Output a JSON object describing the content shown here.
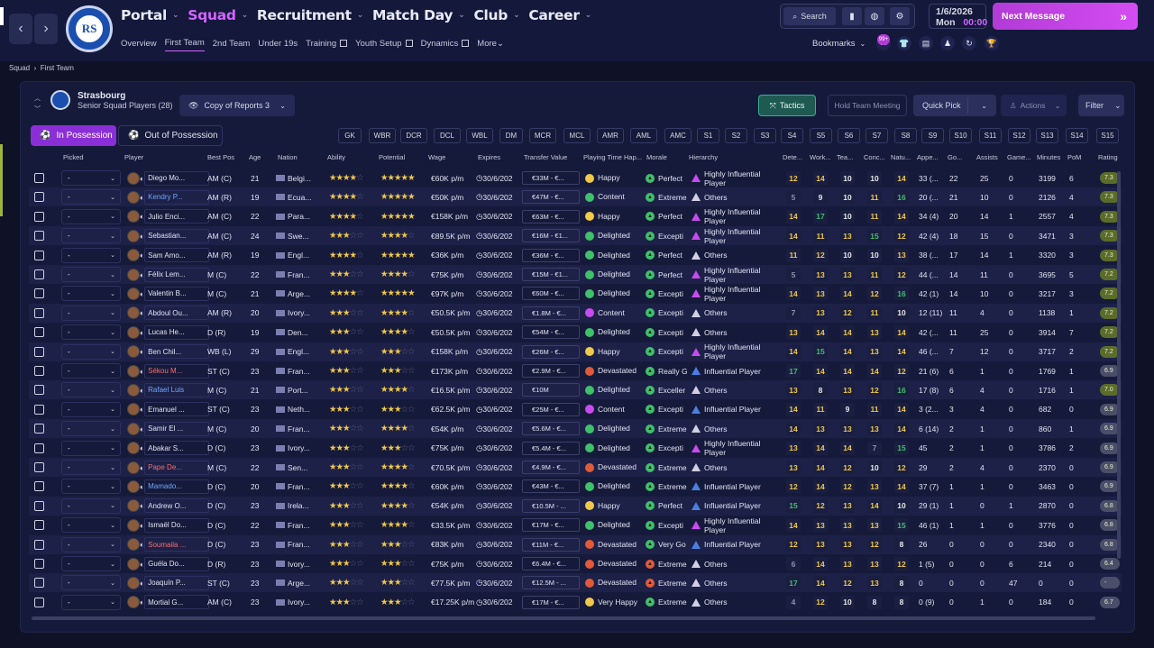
{
  "nav": {
    "main": [
      {
        "label": "Portal",
        "active": false
      },
      {
        "label": "Squad",
        "active": true
      },
      {
        "label": "Recruitment",
        "active": false
      },
      {
        "label": "Match Day",
        "active": false
      },
      {
        "label": "Club",
        "active": false
      },
      {
        "label": "Career",
        "active": false
      }
    ],
    "sub": [
      {
        "label": "Overview",
        "active": false,
        "ext": false
      },
      {
        "label": "First Team",
        "active": true,
        "ext": false
      },
      {
        "label": "2nd Team",
        "active": false,
        "ext": false
      },
      {
        "label": "Under 19s",
        "active": false,
        "ext": false
      },
      {
        "label": "Training",
        "active": false,
        "ext": true
      },
      {
        "label": "Youth Setup",
        "active": false,
        "ext": true
      },
      {
        "label": "Dynamics",
        "active": false,
        "ext": true
      },
      {
        "label": "More",
        "active": false,
        "ext": false
      }
    ],
    "search_label": "Search",
    "date": "1/6/2026",
    "day": "Mon",
    "time": "00:00",
    "next_message": "Next Message",
    "bookmarks": "Bookmarks",
    "badge": "99+"
  },
  "breadcrumb": {
    "root": "Squad",
    "current": "First Team"
  },
  "team": {
    "name": "Strasbourg",
    "subtitle": "Senior Squad Players (28)"
  },
  "toolbar": {
    "view": "Copy of Reports 3",
    "tactics": "Tactics",
    "hold_meeting": "Hold Team Meeting",
    "quick_pick": "Quick Pick",
    "actions": "Actions",
    "filter": "Filter",
    "in_possession": "In Possession",
    "out_possession": "Out of Possession"
  },
  "positions": [
    "GK",
    "WBR",
    "DCR",
    "DCL",
    "WBL",
    "DM",
    "MCR",
    "MCL",
    "AMR",
    "AML",
    "AMC",
    "S1",
    "S2",
    "S3",
    "S4",
    "S5",
    "S6",
    "S7",
    "S8",
    "S9",
    "S10",
    "S11",
    "S12",
    "S13",
    "S14",
    "S15"
  ],
  "headers": [
    "Picked",
    "Player",
    "Best Pos",
    "Age",
    "Nation",
    "Ability",
    "Potential",
    "Wage",
    "Expires",
    "Transfer Value",
    "Playing Time Hap...",
    "Morale",
    "Hierarchy",
    "Dete...",
    "Work...",
    "Tea...",
    "Conc...",
    "Natu...",
    "Appe...",
    "Go...",
    "Assists",
    "Game...",
    "Minutes",
    "PoM",
    "Rating"
  ],
  "colors": {
    "accent": "#d264ff",
    "good": "#3fc06a",
    "mid": "#f0c84a",
    "low": "#e05a3a"
  },
  "rows": [
    {
      "picked": "-",
      "name": "Diego Mo...",
      "pos": "AM (C)",
      "age": "21",
      "nation": "Belgi...",
      "abil": 4,
      "pot": 5,
      "wage": "€60K p/m",
      "exp": "30/6/202",
      "tv": "€33M - €...",
      "hap": "Happy",
      "hapc": "#f0c84a",
      "mor": "Perfect",
      "morc": "#3fc06a",
      "hier": "Highly Influential Player",
      "hierc": "#c74bf0",
      "det": "12",
      "work": "14",
      "tea": "10",
      "conc": "10",
      "natu": "14",
      "app": "33 (...",
      "go": "22",
      "ast": "25",
      "gam": "0",
      "min": "3199",
      "pom": "6",
      "rat": "7.3"
    },
    {
      "picked": "-",
      "name": "Kendry P...",
      "pos": "AM (R)",
      "age": "19",
      "nation": "Ecua...",
      "abil": 4,
      "pot": 5,
      "wage": "€50K p/m",
      "exp": "30/6/202",
      "tv": "€47M - €...",
      "hap": "Content",
      "hapc": "#3fc06a",
      "mor": "Extreme",
      "morc": "#3fc06a",
      "hier": "Others",
      "hierc": "#cfd1e3",
      "det": "5",
      "work": "9",
      "tea": "10",
      "conc": "11",
      "natu": "16",
      "app": "20 (...",
      "go": "21",
      "ast": "10",
      "gam": "0",
      "min": "2126",
      "pom": "4",
      "rat": "7.3"
    },
    {
      "picked": "-",
      "name": "Julio Enci...",
      "pos": "AM (C)",
      "age": "22",
      "nation": "Para...",
      "abil": 4,
      "pot": 5,
      "wage": "€158K p/m",
      "exp": "30/6/202",
      "tv": "€63M - €...",
      "hap": "Happy",
      "hapc": "#f0c84a",
      "mor": "Perfect",
      "morc": "#3fc06a",
      "hier": "Highly Influential Player",
      "hierc": "#c74bf0",
      "det": "14",
      "work": "17",
      "tea": "10",
      "conc": "11",
      "natu": "14",
      "app": "34 (4)",
      "go": "20",
      "ast": "14",
      "gam": "1",
      "min": "2557",
      "pom": "4",
      "rat": "7.3"
    },
    {
      "picked": "-",
      "name": "Sebastian...",
      "pos": "AM (C)",
      "age": "24",
      "nation": "Swe...",
      "abil": 3,
      "pot": 4,
      "wage": "€89.5K p/m",
      "exp": "30/6/202",
      "tv": "€16M - €1...",
      "hap": "Delighted",
      "hapc": "#3fc06a",
      "mor": "Excepti",
      "morc": "#3fc06a",
      "hier": "Highly Influential Player",
      "hierc": "#c74bf0",
      "det": "14",
      "work": "11",
      "tea": "13",
      "conc": "15",
      "natu": "12",
      "app": "42 (4)",
      "go": "18",
      "ast": "15",
      "gam": "0",
      "min": "3471",
      "pom": "3",
      "rat": "7.3"
    },
    {
      "picked": "-",
      "name": "Sam Amo...",
      "pos": "AM (R)",
      "age": "19",
      "nation": "Engl...",
      "abil": 4,
      "pot": 5,
      "wage": "€36K p/m",
      "exp": "30/6/202",
      "tv": "€36M - €...",
      "hap": "Delighted",
      "hapc": "#3fc06a",
      "mor": "Perfect",
      "morc": "#3fc06a",
      "hier": "Others",
      "hierc": "#cfd1e3",
      "det": "11",
      "work": "12",
      "tea": "10",
      "conc": "10",
      "natu": "13",
      "app": "38 (...",
      "go": "17",
      "ast": "14",
      "gam": "1",
      "min": "3320",
      "pom": "3",
      "rat": "7.3"
    },
    {
      "picked": "-",
      "name": "Félix Lem...",
      "pos": "M (C)",
      "age": "22",
      "nation": "Fran...",
      "abil": 3,
      "pot": 4,
      "wage": "€75K p/m",
      "exp": "30/6/202",
      "tv": "€15M - €1...",
      "hap": "Delighted",
      "hapc": "#3fc06a",
      "mor": "Perfect",
      "morc": "#3fc06a",
      "hier": "Highly Influential Player",
      "hierc": "#c74bf0",
      "det": "5",
      "work": "13",
      "tea": "13",
      "conc": "11",
      "natu": "12",
      "app": "44 (...",
      "go": "14",
      "ast": "11",
      "gam": "0",
      "min": "3695",
      "pom": "5",
      "rat": "7.2"
    },
    {
      "picked": "-",
      "name": "Valentin B...",
      "pos": "M (C)",
      "age": "21",
      "nation": "Arge...",
      "abil": 4,
      "pot": 5,
      "wage": "€97K p/m",
      "exp": "30/6/202",
      "tv": "€60M - €...",
      "hap": "Delighted",
      "hapc": "#3fc06a",
      "mor": "Excepti",
      "morc": "#3fc06a",
      "hier": "Highly Influential Player",
      "hierc": "#c74bf0",
      "det": "14",
      "work": "13",
      "tea": "14",
      "conc": "12",
      "natu": "16",
      "app": "42 (1)",
      "go": "14",
      "ast": "10",
      "gam": "0",
      "min": "3217",
      "pom": "3",
      "rat": "7.2"
    },
    {
      "picked": "-",
      "name": "Abdoul Ou...",
      "pos": "AM (R)",
      "age": "20",
      "nation": "Ivory...",
      "abil": 3,
      "pot": 4,
      "wage": "€50.5K p/m",
      "exp": "30/6/202",
      "tv": "€1.8M - €...",
      "hap": "Content",
      "hapc": "#c74bf0",
      "mor": "Excepti",
      "morc": "#3fc06a",
      "hier": "Others",
      "hierc": "#cfd1e3",
      "det": "7",
      "work": "13",
      "tea": "12",
      "conc": "11",
      "natu": "10",
      "app": "12 (11)",
      "go": "11",
      "ast": "4",
      "gam": "0",
      "min": "1138",
      "pom": "1",
      "rat": "7.2"
    },
    {
      "picked": "-",
      "name": "Lucas He...",
      "pos": "D (R)",
      "age": "19",
      "nation": "Den...",
      "abil": 3,
      "pot": 4,
      "wage": "€50.5K p/m",
      "exp": "30/6/202",
      "tv": "€54M - €...",
      "hap": "Delighted",
      "hapc": "#3fc06a",
      "mor": "Excepti",
      "morc": "#3fc06a",
      "hier": "Others",
      "hierc": "#cfd1e3",
      "det": "13",
      "work": "14",
      "tea": "14",
      "conc": "13",
      "natu": "14",
      "app": "42 (...",
      "go": "11",
      "ast": "25",
      "gam": "0",
      "min": "3914",
      "pom": "7",
      "rat": "7.2"
    },
    {
      "picked": "-",
      "name": "Ben Chil...",
      "pos": "WB (L)",
      "age": "29",
      "nation": "Engl...",
      "abil": 3,
      "pot": 3,
      "wage": "€158K p/m",
      "exp": "30/6/202",
      "tv": "€26M - €...",
      "hap": "Happy",
      "hapc": "#f0c84a",
      "mor": "Excepti",
      "morc": "#3fc06a",
      "hier": "Highly Influential Player",
      "hierc": "#c74bf0",
      "det": "14",
      "work": "15",
      "tea": "14",
      "conc": "13",
      "natu": "14",
      "app": "46 (...",
      "go": "7",
      "ast": "12",
      "gam": "0",
      "min": "3717",
      "pom": "2",
      "rat": "7.2"
    },
    {
      "picked": "-",
      "name": "Sékou M...",
      "pos": "ST (C)",
      "age": "23",
      "nation": "Fran...",
      "abil": 3,
      "pot": 3,
      "wage": "€173K p/m",
      "exp": "30/6/202",
      "tv": "€2.9M - €...",
      "hap": "Devastated",
      "hapc": "#e05a3a",
      "mor": "Really G",
      "morc": "#3fc06a",
      "hier": "Influential Player",
      "hierc": "#4a7fe0",
      "det": "17",
      "work": "14",
      "tea": "14",
      "conc": "14",
      "natu": "12",
      "app": "21 (6)",
      "go": "6",
      "ast": "1",
      "gam": "0",
      "min": "1769",
      "pom": "1",
      "rat": "6.9"
    },
    {
      "picked": "-",
      "name": "Rafael Luis",
      "pos": "M (C)",
      "age": "21",
      "nation": "Port...",
      "abil": 3,
      "pot": 4,
      "wage": "€16.5K p/m",
      "exp": "30/6/202",
      "tv": "€10M",
      "hap": "Delighted",
      "hapc": "#3fc06a",
      "mor": "Exceller",
      "morc": "#3fc06a",
      "hier": "Others",
      "hierc": "#cfd1e3",
      "det": "13",
      "work": "8",
      "tea": "13",
      "conc": "12",
      "natu": "16",
      "app": "17 (8)",
      "go": "6",
      "ast": "4",
      "gam": "0",
      "min": "1716",
      "pom": "1",
      "rat": "7.0"
    },
    {
      "picked": "-",
      "name": "Emanuel ...",
      "pos": "ST (C)",
      "age": "23",
      "nation": "Neth...",
      "abil": 3,
      "pot": 3,
      "wage": "€62.5K p/m",
      "exp": "30/6/202",
      "tv": "€25M - €...",
      "hap": "Content",
      "hapc": "#c74bf0",
      "mor": "Excepti",
      "morc": "#3fc06a",
      "hier": "Influential Player",
      "hierc": "#4a7fe0",
      "det": "14",
      "work": "11",
      "tea": "9",
      "conc": "11",
      "natu": "14",
      "app": "3 (2...",
      "go": "3",
      "ast": "4",
      "gam": "0",
      "min": "682",
      "pom": "0",
      "rat": "6.9"
    },
    {
      "picked": "-",
      "name": "Samir El ...",
      "pos": "M (C)",
      "age": "20",
      "nation": "Fran...",
      "abil": 3,
      "pot": 4,
      "wage": "€54K p/m",
      "exp": "30/6/202",
      "tv": "€5.6M - €...",
      "hap": "Delighted",
      "hapc": "#3fc06a",
      "mor": "Extreme",
      "morc": "#3fc06a",
      "hier": "Others",
      "hierc": "#cfd1e3",
      "det": "14",
      "work": "13",
      "tea": "13",
      "conc": "13",
      "natu": "14",
      "app": "6 (14)",
      "go": "2",
      "ast": "1",
      "gam": "0",
      "min": "860",
      "pom": "1",
      "rat": "6.9"
    },
    {
      "picked": "-",
      "name": "Abakar S...",
      "pos": "D (C)",
      "age": "23",
      "nation": "Ivory...",
      "abil": 3,
      "pot": 3,
      "wage": "€75K p/m",
      "exp": "30/6/202",
      "tv": "€5.4M - €...",
      "hap": "Delighted",
      "hapc": "#3fc06a",
      "mor": "Excepti",
      "morc": "#3fc06a",
      "hier": "Highly Influential Player",
      "hierc": "#c74bf0",
      "det": "13",
      "work": "14",
      "tea": "14",
      "conc": "7",
      "natu": "15",
      "app": "45",
      "go": "2",
      "ast": "1",
      "gam": "0",
      "min": "3786",
      "pom": "2",
      "rat": "6.9"
    },
    {
      "picked": "-",
      "name": "Pape De...",
      "pos": "M (C)",
      "age": "22",
      "nation": "Sen...",
      "abil": 3,
      "pot": 4,
      "wage": "€70.5K p/m",
      "exp": "30/6/202",
      "tv": "€4.9M - €...",
      "hap": "Devastated",
      "hapc": "#e05a3a",
      "mor": "Extreme",
      "morc": "#3fc06a",
      "hier": "Others",
      "hierc": "#cfd1e3",
      "det": "13",
      "work": "14",
      "tea": "12",
      "conc": "10",
      "natu": "12",
      "app": "29",
      "go": "2",
      "ast": "4",
      "gam": "0",
      "min": "2370",
      "pom": "0",
      "rat": "6.9"
    },
    {
      "picked": "-",
      "name": "Mamado...",
      "pos": "D (C)",
      "age": "20",
      "nation": "Fran...",
      "abil": 3,
      "pot": 4,
      "wage": "€60K p/m",
      "exp": "30/6/202",
      "tv": "€43M - €...",
      "hap": "Delighted",
      "hapc": "#3fc06a",
      "mor": "Extreme",
      "morc": "#3fc06a",
      "hier": "Influential Player",
      "hierc": "#4a7fe0",
      "det": "12",
      "work": "14",
      "tea": "12",
      "conc": "13",
      "natu": "14",
      "app": "37 (7)",
      "go": "1",
      "ast": "1",
      "gam": "0",
      "min": "3463",
      "pom": "0",
      "rat": "6.9"
    },
    {
      "picked": "-",
      "name": "Andrew O...",
      "pos": "D (C)",
      "age": "23",
      "nation": "Irela...",
      "abil": 3,
      "pot": 4,
      "wage": "€54K p/m",
      "exp": "30/6/202",
      "tv": "€10.5M - ...",
      "hap": "Happy",
      "hapc": "#f0c84a",
      "mor": "Perfect",
      "morc": "#3fc06a",
      "hier": "Influential Player",
      "hierc": "#4a7fe0",
      "det": "15",
      "work": "12",
      "tea": "13",
      "conc": "14",
      "natu": "10",
      "app": "29 (1)",
      "go": "1",
      "ast": "0",
      "gam": "1",
      "min": "2870",
      "pom": "0",
      "rat": "6.8"
    },
    {
      "picked": "-",
      "name": "Ismaël Do...",
      "pos": "D (C)",
      "age": "22",
      "nation": "Fran...",
      "abil": 3,
      "pot": 4,
      "wage": "€33.5K p/m",
      "exp": "30/6/202",
      "tv": "€17M - €...",
      "hap": "Delighted",
      "hapc": "#3fc06a",
      "mor": "Excepti",
      "morc": "#3fc06a",
      "hier": "Highly Influential Player",
      "hierc": "#c74bf0",
      "det": "14",
      "work": "13",
      "tea": "13",
      "conc": "13",
      "natu": "15",
      "app": "46 (1)",
      "go": "1",
      "ast": "1",
      "gam": "0",
      "min": "3776",
      "pom": "0",
      "rat": "6.8"
    },
    {
      "picked": "-",
      "name": "Soumaila ...",
      "pos": "D (C)",
      "age": "23",
      "nation": "Fran...",
      "abil": 3,
      "pot": 3,
      "wage": "€83K p/m",
      "exp": "30/6/202",
      "tv": "€11M - €...",
      "hap": "Devastated",
      "hapc": "#e05a3a",
      "mor": "Very Go",
      "morc": "#3fc06a",
      "hier": "Influential Player",
      "hierc": "#4a7fe0",
      "det": "12",
      "work": "13",
      "tea": "13",
      "conc": "12",
      "natu": "8",
      "app": "26",
      "go": "0",
      "ast": "0",
      "gam": "0",
      "min": "2340",
      "pom": "0",
      "rat": "6.8"
    },
    {
      "picked": "-",
      "name": "Guéla Do...",
      "pos": "D (R)",
      "age": "23",
      "nation": "Ivory...",
      "abil": 3,
      "pot": 3,
      "wage": "€75K p/m",
      "exp": "30/6/202",
      "tv": "€6.4M - €...",
      "hap": "Devastated",
      "hapc": "#e05a3a",
      "mor": "Extreme",
      "morc": "#e05a3a",
      "hier": "Others",
      "hierc": "#cfd1e3",
      "det": "6",
      "work": "14",
      "tea": "13",
      "conc": "13",
      "natu": "12",
      "app": "1 (5)",
      "go": "0",
      "ast": "0",
      "gam": "6",
      "min": "214",
      "pom": "0",
      "rat": "6.4"
    },
    {
      "picked": "-",
      "name": "Joaquín P...",
      "pos": "ST (C)",
      "age": "23",
      "nation": "Arge...",
      "abil": 3,
      "pot": 3,
      "wage": "€77.5K p/m",
      "exp": "30/6/202",
      "tv": "€12.5M - ...",
      "hap": "Devastated",
      "hapc": "#e05a3a",
      "mor": "Extreme",
      "morc": "#e05a3a",
      "hier": "Others",
      "hierc": "#cfd1e3",
      "det": "17",
      "work": "14",
      "tea": "12",
      "conc": "13",
      "natu": "8",
      "app": "0",
      "go": "0",
      "ast": "0",
      "gam": "47",
      "min": "0",
      "pom": "0",
      "rat": "-"
    },
    {
      "picked": "-",
      "name": "Mortial G...",
      "pos": "AM (C)",
      "age": "23",
      "nation": "Ivory...",
      "abil": 3,
      "pot": 3,
      "wage": "€17.25K p/m",
      "exp": "30/6/202",
      "tv": "€17M - €...",
      "hap": "Very Happy",
      "hapc": "#f0c84a",
      "mor": "Extreme",
      "morc": "#3fc06a",
      "hier": "Others",
      "hierc": "#cfd1e3",
      "det": "4",
      "work": "12",
      "tea": "10",
      "conc": "8",
      "natu": "8",
      "app": "0 (9)",
      "go": "0",
      "ast": "1",
      "gam": "0",
      "min": "184",
      "pom": "0",
      "rat": "6.7"
    }
  ]
}
